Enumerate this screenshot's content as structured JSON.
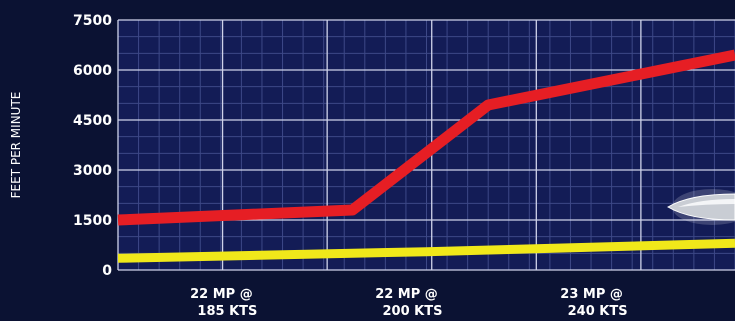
{
  "chart_data": {
    "type": "line",
    "ylabel": "FEET PER MINUTE",
    "xlabel": "",
    "ylim": [
      0,
      7500
    ],
    "yticks": [
      0,
      1500,
      3000,
      4500,
      6000,
      7500
    ],
    "ytick_labels": [
      "0",
      "1500",
      "3000",
      "4500",
      "6000",
      "7500"
    ],
    "grid": true,
    "categories": [
      {
        "line1": "22 MP @",
        "line2": "185 KTS"
      },
      {
        "line1": "22 MP @",
        "line2": "200 KTS"
      },
      {
        "line1": "23 MP @",
        "line2": "240 KTS"
      }
    ],
    "x_positions": [
      0.2,
      0.5,
      0.8
    ],
    "series": [
      {
        "color": "#e61e24",
        "points": [
          {
            "x": 0,
            "y": 1500
          },
          {
            "x": 0.38,
            "y": 1800
          },
          {
            "x": 0.6,
            "y": 4950
          },
          {
            "x": 1.0,
            "y": 6450
          }
        ]
      },
      {
        "color": "#f0e81a",
        "points": [
          {
            "x": 0,
            "y": 350
          },
          {
            "x": 0.5,
            "y": 550
          },
          {
            "x": 1.0,
            "y": 800
          }
        ]
      }
    ],
    "colors": {
      "background": "#0b1233",
      "plot_background": "#131c56",
      "grid_major": "#cfd3ea",
      "grid_minor": "#3d4887"
    }
  }
}
